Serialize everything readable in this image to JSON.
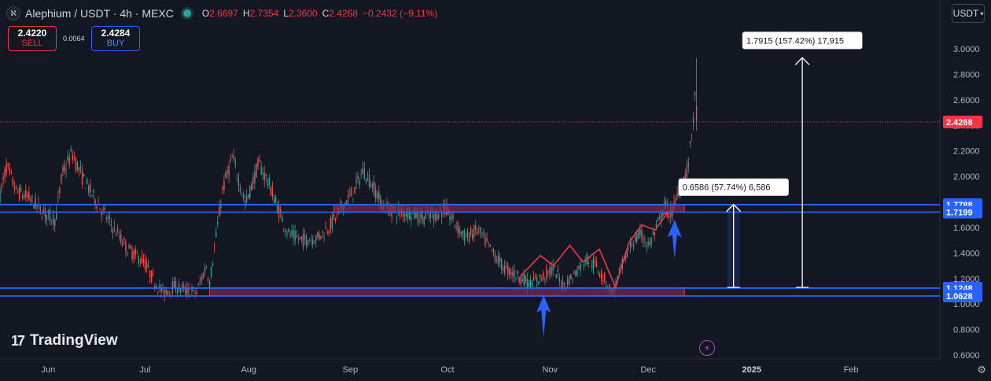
{
  "header": {
    "symbol": "Alephium / USDT · 4h · MEXC",
    "logo_icon": "alephium-logo-icon",
    "ohlc": [
      {
        "key": "O",
        "value": "2.6697"
      },
      {
        "key": "H",
        "value": "2.7354"
      },
      {
        "key": "L",
        "value": "2.3600"
      },
      {
        "key": "C",
        "value": "2.4268"
      }
    ],
    "change": "−0.2432 (−9.11%)"
  },
  "trade": {
    "sell_price": "2.4220",
    "sell_label": "SELL",
    "spread": "0.0064",
    "buy_price": "2.4284",
    "buy_label": "BUY"
  },
  "currency": "USDT",
  "brand": "TradingView",
  "colors": {
    "background": "#131722",
    "up": "#26a69a",
    "down": "#ef5350",
    "level_line": "#2962ff",
    "zone_fill": "#7b2a5a",
    "price_label": "#f23645",
    "arrow_blue": "#2962ff",
    "path_red": "#f23645",
    "annotation_line": "#ffffff"
  },
  "chart_data": {
    "type": "candlestick",
    "y_axis": {
      "ticks": [
        "3.0000",
        "2.8000",
        "2.6000",
        "2.4000",
        "2.2000",
        "2.0000",
        "1.8000",
        "1.6000",
        "1.4000",
        "1.2000",
        "1.0000",
        "0.8000",
        "0.6000"
      ],
      "ylim": [
        0.6,
        3.0
      ]
    },
    "x_axis": {
      "ticks": [
        "Jun",
        "Jul",
        "Aug",
        "Sep",
        "Oct",
        "Nov",
        "Dec",
        "2025",
        "Feb"
      ],
      "start": "2024-05-17",
      "end": "2025-02-28"
    },
    "last_price": {
      "value": 2.4268,
      "label": "2.4268"
    },
    "level_labels": [
      {
        "label": "1.7788",
        "value": 1.7788
      },
      {
        "label": "1.7199",
        "value": 1.7199
      },
      {
        "label": "1.1248",
        "value": 1.1248
      },
      {
        "label": "1.0628",
        "value": 1.0628
      }
    ],
    "zones": [
      {
        "name": "resistance-zone",
        "x0": "2024-08-27",
        "x1": "2024-12-12",
        "y_low": 1.7199,
        "y_high": 1.7788
      },
      {
        "name": "support-zone",
        "x0": "2024-07-20",
        "x1": "2024-12-12",
        "y_low": 1.0628,
        "y_high": 1.1248
      }
    ],
    "measurements": [
      {
        "text": "1.7915 (157.42%) 17,915",
        "x": "2025-01-17",
        "y_from": 1.13,
        "y_to": 2.93
      },
      {
        "text": "0.6586 (57.74%) 6,586",
        "x": "2024-12-27",
        "y_from": 1.13,
        "y_to": 1.78
      }
    ],
    "arrows_up": [
      {
        "x": "2024-10-30",
        "y_tip": 1.07,
        "y_tail": 0.73
      },
      {
        "x": "2024-12-09",
        "y_tip": 1.66,
        "y_tail": 1.35
      }
    ],
    "projection_path": [
      {
        "x": "2024-10-23",
        "y": 1.22
      },
      {
        "x": "2024-10-29",
        "y": 1.38
      },
      {
        "x": "2024-11-02",
        "y": 1.3
      },
      {
        "x": "2024-11-07",
        "y": 1.46
      },
      {
        "x": "2024-11-11",
        "y": 1.33
      },
      {
        "x": "2024-11-16",
        "y": 1.43
      },
      {
        "x": "2024-11-21",
        "y": 1.13
      },
      {
        "x": "2024-11-25",
        "y": 1.48
      },
      {
        "x": "2024-11-29",
        "y": 1.62
      },
      {
        "x": "2024-12-03",
        "y": 1.58
      },
      {
        "x": "2024-12-07",
        "y": 1.72
      }
    ],
    "price_path": [
      {
        "x": "2024-05-17",
        "y": 1.85
      },
      {
        "x": "2024-05-19",
        "y": 2.08
      },
      {
        "x": "2024-05-22",
        "y": 1.88
      },
      {
        "x": "2024-05-26",
        "y": 1.83
      },
      {
        "x": "2024-05-30",
        "y": 1.72
      },
      {
        "x": "2024-06-03",
        "y": 1.66
      },
      {
        "x": "2024-06-05",
        "y": 2.02
      },
      {
        "x": "2024-06-08",
        "y": 2.18
      },
      {
        "x": "2024-06-11",
        "y": 2.0
      },
      {
        "x": "2024-06-15",
        "y": 1.82
      },
      {
        "x": "2024-06-20",
        "y": 1.62
      },
      {
        "x": "2024-06-25",
        "y": 1.43
      },
      {
        "x": "2024-06-30",
        "y": 1.33
      },
      {
        "x": "2024-07-03",
        "y": 1.18
      },
      {
        "x": "2024-07-06",
        "y": 1.08
      },
      {
        "x": "2024-07-09",
        "y": 1.14
      },
      {
        "x": "2024-07-13",
        "y": 1.1
      },
      {
        "x": "2024-07-16",
        "y": 1.09
      },
      {
        "x": "2024-07-19",
        "y": 1.3
      },
      {
        "x": "2024-07-20",
        "y": 1.16
      },
      {
        "x": "2024-07-24",
        "y": 1.9
      },
      {
        "x": "2024-07-27",
        "y": 2.15
      },
      {
        "x": "2024-07-31",
        "y": 1.78
      },
      {
        "x": "2024-08-04",
        "y": 2.1
      },
      {
        "x": "2024-08-07",
        "y": 1.95
      },
      {
        "x": "2024-08-10",
        "y": 1.74
      },
      {
        "x": "2024-08-13",
        "y": 1.55
      },
      {
        "x": "2024-08-17",
        "y": 1.5
      },
      {
        "x": "2024-08-22",
        "y": 1.52
      },
      {
        "x": "2024-08-26",
        "y": 1.62
      },
      {
        "x": "2024-08-30",
        "y": 1.78
      },
      {
        "x": "2024-09-02",
        "y": 1.88
      },
      {
        "x": "2024-09-05",
        "y": 2.05
      },
      {
        "x": "2024-09-08",
        "y": 1.92
      },
      {
        "x": "2024-09-11",
        "y": 1.76
      },
      {
        "x": "2024-09-15",
        "y": 1.72
      },
      {
        "x": "2024-09-19",
        "y": 1.72
      },
      {
        "x": "2024-09-23",
        "y": 1.68
      },
      {
        "x": "2024-09-27",
        "y": 1.7
      },
      {
        "x": "2024-09-30",
        "y": 1.74
      },
      {
        "x": "2024-10-03",
        "y": 1.63
      },
      {
        "x": "2024-10-06",
        "y": 1.52
      },
      {
        "x": "2024-10-10",
        "y": 1.58
      },
      {
        "x": "2024-10-14",
        "y": 1.42
      },
      {
        "x": "2024-10-18",
        "y": 1.28
      },
      {
        "x": "2024-10-22",
        "y": 1.22
      },
      {
        "x": "2024-10-26",
        "y": 1.16
      },
      {
        "x": "2024-10-29",
        "y": 1.2
      },
      {
        "x": "2024-11-02",
        "y": 1.28
      },
      {
        "x": "2024-11-05",
        "y": 1.14
      },
      {
        "x": "2024-11-08",
        "y": 1.22
      },
      {
        "x": "2024-11-12",
        "y": 1.36
      },
      {
        "x": "2024-11-15",
        "y": 1.3
      },
      {
        "x": "2024-11-18",
        "y": 1.18
      },
      {
        "x": "2024-11-20",
        "y": 1.08
      },
      {
        "x": "2024-11-23",
        "y": 1.3
      },
      {
        "x": "2024-11-26",
        "y": 1.48
      },
      {
        "x": "2024-11-29",
        "y": 1.55
      },
      {
        "x": "2024-12-01",
        "y": 1.45
      },
      {
        "x": "2024-12-04",
        "y": 1.62
      },
      {
        "x": "2024-12-06",
        "y": 1.78
      },
      {
        "x": "2024-12-08",
        "y": 1.7
      },
      {
        "x": "2024-12-11",
        "y": 1.95
      },
      {
        "x": "2024-12-13",
        "y": 2.05
      },
      {
        "x": "2024-12-14",
        "y": 2.28
      },
      {
        "x": "2024-12-15",
        "y": 2.55
      },
      {
        "x": "2024-12-16",
        "y": 2.78
      },
      {
        "x": "2024-12-16",
        "y": 2.43
      }
    ]
  }
}
